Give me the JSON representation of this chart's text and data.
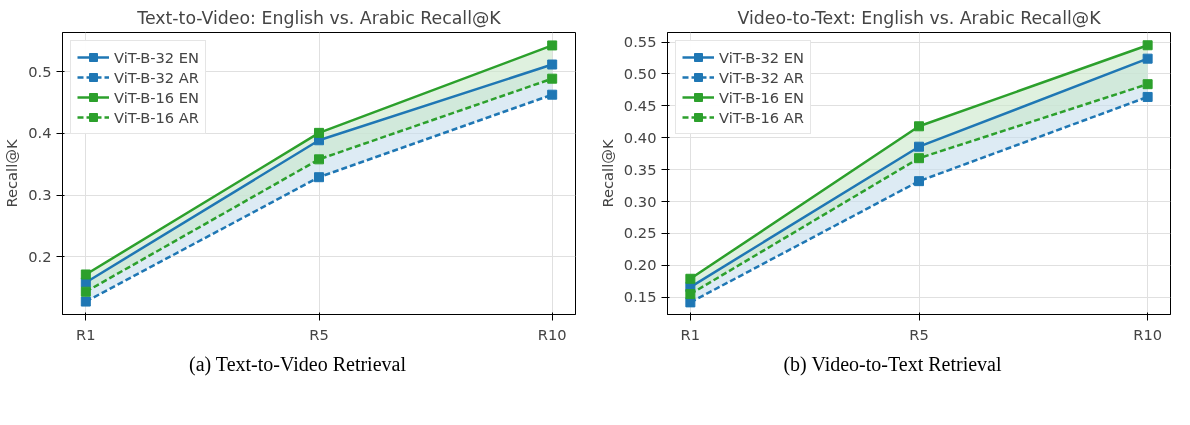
{
  "chart_data": [
    {
      "type": "line",
      "title": "Text-to-Video: English vs. Arabic Recall@K",
      "ylabel": "Recall@K",
      "categories": [
        "R1",
        "R5",
        "R10"
      ],
      "ylim": [
        0.106,
        0.564
      ],
      "yticks": [
        {
          "value": 0.2,
          "label": "0.2"
        },
        {
          "value": 0.3,
          "label": "0.3"
        },
        {
          "value": 0.4,
          "label": "0.4"
        },
        {
          "value": 0.5,
          "label": "0.5"
        }
      ],
      "grid": true,
      "legend": "top left",
      "marker": "square",
      "annotations": [
        "(a) Text-to-Video Retrieval"
      ],
      "series": [
        {
          "name": "ViT-B-32 EN",
          "color": "#1f77b4",
          "line_style": "solid",
          "values": [
            0.158,
            0.389,
            0.512
          ],
          "lower": [
            0.127,
            0.329,
            0.463
          ],
          "upper": [
            0.158,
            0.389,
            0.512
          ]
        },
        {
          "name": "ViT-B-32 AR",
          "color": "#1f77b4",
          "line_style": "dashed",
          "values": [
            0.127,
            0.329,
            0.463
          ]
        },
        {
          "name": "ViT-B-16 EN",
          "color": "#2ca02c",
          "line_style": "solid",
          "values": [
            0.171,
            0.401,
            0.543
          ],
          "lower": [
            0.143,
            0.358,
            0.489
          ],
          "upper": [
            0.171,
            0.401,
            0.543
          ]
        },
        {
          "name": "ViT-B-16 AR",
          "color": "#2ca02c",
          "line_style": "dashed",
          "values": [
            0.143,
            0.358,
            0.489
          ]
        }
      ]
    },
    {
      "type": "line",
      "title": "Video-to-Text: English vs. Arabic Recall@K",
      "ylabel": "Recall@K",
      "categories": [
        "R1",
        "R5",
        "R10"
      ],
      "ylim": [
        0.123,
        0.565
      ],
      "yticks": [
        {
          "value": 0.15,
          "label": "0.15"
        },
        {
          "value": 0.2,
          "label": "0.20"
        },
        {
          "value": 0.25,
          "label": "0.25"
        },
        {
          "value": 0.3,
          "label": "0.30"
        },
        {
          "value": 0.35,
          "label": "0.35"
        },
        {
          "value": 0.4,
          "label": "0.40"
        },
        {
          "value": 0.45,
          "label": "0.45"
        },
        {
          "value": 0.5,
          "label": "0.50"
        },
        {
          "value": 0.55,
          "label": "0.55"
        }
      ],
      "grid": true,
      "legend": "top left",
      "marker": "square",
      "annotations": [
        "(b) Video-to-Text Retrieval"
      ],
      "series": [
        {
          "name": "ViT-B-32 EN",
          "color": "#1f77b4",
          "line_style": "solid",
          "values": [
            0.166,
            0.386,
            0.524
          ],
          "lower": [
            0.142,
            0.332,
            0.464
          ],
          "upper": [
            0.166,
            0.386,
            0.524
          ]
        },
        {
          "name": "ViT-B-32 AR",
          "color": "#1f77b4",
          "line_style": "dashed",
          "values": [
            0.142,
            0.332,
            0.464
          ]
        },
        {
          "name": "ViT-B-16 EN",
          "color": "#2ca02c",
          "line_style": "solid",
          "values": [
            0.179,
            0.418,
            0.545
          ],
          "lower": [
            0.155,
            0.368,
            0.484
          ],
          "upper": [
            0.179,
            0.418,
            0.545
          ]
        },
        {
          "name": "ViT-B-16 AR",
          "color": "#2ca02c",
          "line_style": "dashed",
          "values": [
            0.155,
            0.368,
            0.484
          ]
        }
      ]
    }
  ]
}
